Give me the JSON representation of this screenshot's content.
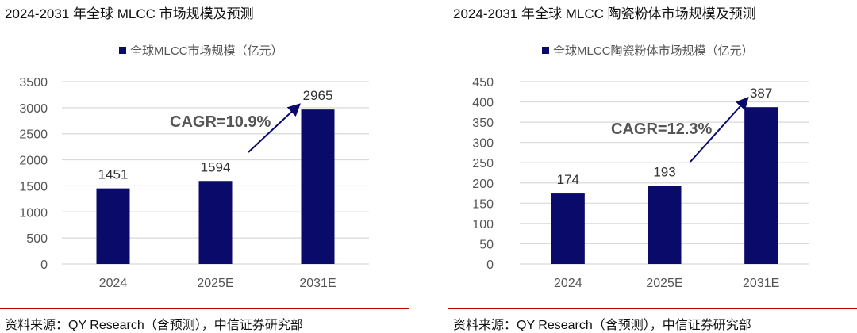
{
  "chart_data": [
    {
      "type": "bar",
      "title": "2024-2031 年全球 MLCC 市场规模及预测",
      "legend": "全球MLCC市场规模（亿元）",
      "legend_position": "top",
      "categories": [
        "2024",
        "2025E",
        "2031E"
      ],
      "values": [
        1451,
        1594,
        2965
      ],
      "ylim": [
        0,
        3500
      ],
      "yticks": [
        0,
        500,
        1000,
        1500,
        2000,
        2500,
        3000,
        3500
      ],
      "grid": true,
      "annotation": "CAGR=10.9%",
      "bar_color": "#0a0a6b",
      "source": "资料来源：QY Research（含预测），中信证券研究部"
    },
    {
      "type": "bar",
      "title": "2024-2031 年全球 MLCC 陶瓷粉体市场规模及预测",
      "legend": "全球MLCC陶瓷粉体市场规模（亿元）",
      "legend_position": "top",
      "categories": [
        "2024",
        "2025E",
        "2031E"
      ],
      "values": [
        174,
        193,
        387
      ],
      "ylim": [
        0,
        450
      ],
      "yticks": [
        0,
        50,
        100,
        150,
        200,
        250,
        300,
        350,
        400,
        450
      ],
      "grid": true,
      "annotation": "CAGR=12.3%",
      "bar_color": "#0a0a6b",
      "source": "资料来源：QY Research（含预测），中信证券研究部"
    }
  ]
}
